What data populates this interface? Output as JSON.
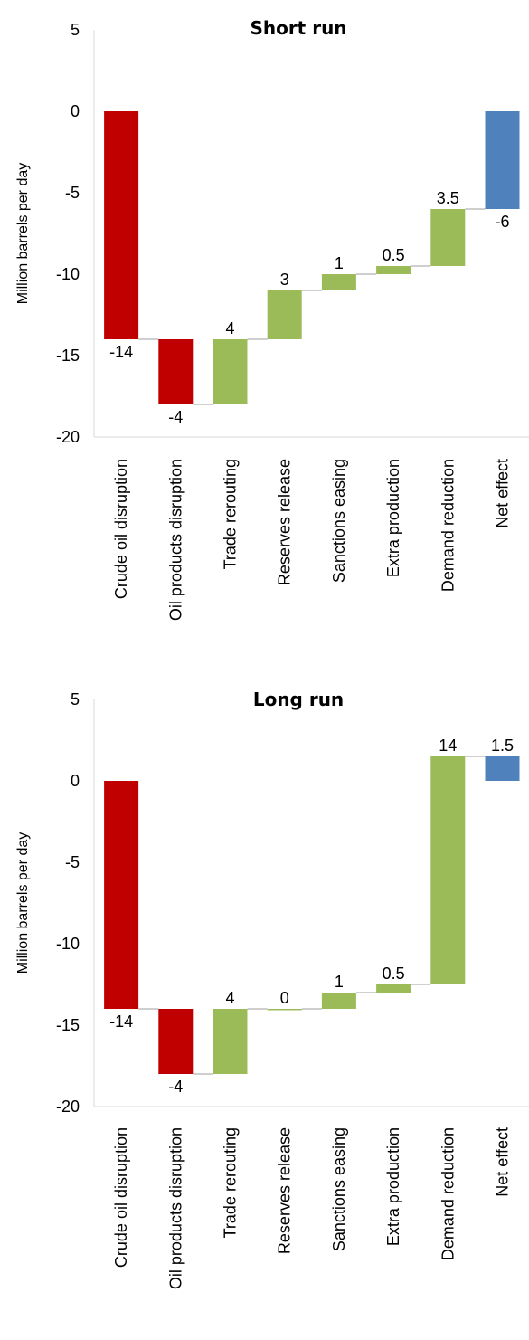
{
  "colors": {
    "disruption": "#C00000",
    "offset": "#9BBB59",
    "net": "#4F81BD",
    "connector": "#BFBFBF",
    "axis": "#D9D9D9"
  },
  "chart_data": [
    {
      "type": "bar",
      "subtype": "waterfall",
      "title": "Short run",
      "ylabel": "Million barrels per day",
      "ylim": [
        -20,
        5
      ],
      "yticks": [
        5,
        0,
        -5,
        -10,
        -15,
        -20
      ],
      "categories": [
        "Crude oil disruption",
        "Oil products disruption",
        "Trade rerouting",
        "Reserves release",
        "Sanctions easing",
        "Extra production",
        "Demand reduction",
        "Net effect"
      ],
      "values": [
        -14,
        -4,
        4,
        3,
        1,
        0.5,
        3.5,
        -6
      ],
      "value_labels": [
        "-14",
        "-4",
        "4",
        "3",
        "1",
        "0.5",
        "3.5",
        "-6"
      ],
      "roles": [
        "disruption",
        "disruption",
        "offset",
        "offset",
        "offset",
        "offset",
        "offset",
        "net"
      ]
    },
    {
      "type": "bar",
      "subtype": "waterfall",
      "title": "Long run",
      "ylabel": "Million barrels per day",
      "ylim": [
        -20,
        5
      ],
      "yticks": [
        5,
        0,
        -5,
        -10,
        -15,
        -20
      ],
      "categories": [
        "Crude oil disruption",
        "Oil products disruption",
        "Trade rerouting",
        "Reserves release",
        "Sanctions easing",
        "Extra production",
        "Demand reduction",
        "Net effect"
      ],
      "values": [
        -14,
        -4,
        4,
        0,
        1,
        0.5,
        14,
        1.5
      ],
      "value_labels": [
        "-14",
        "-4",
        "4",
        "0",
        "1",
        "0.5",
        "14",
        "1.5"
      ],
      "roles": [
        "disruption",
        "disruption",
        "offset",
        "offset",
        "offset",
        "offset",
        "offset",
        "net"
      ]
    }
  ]
}
